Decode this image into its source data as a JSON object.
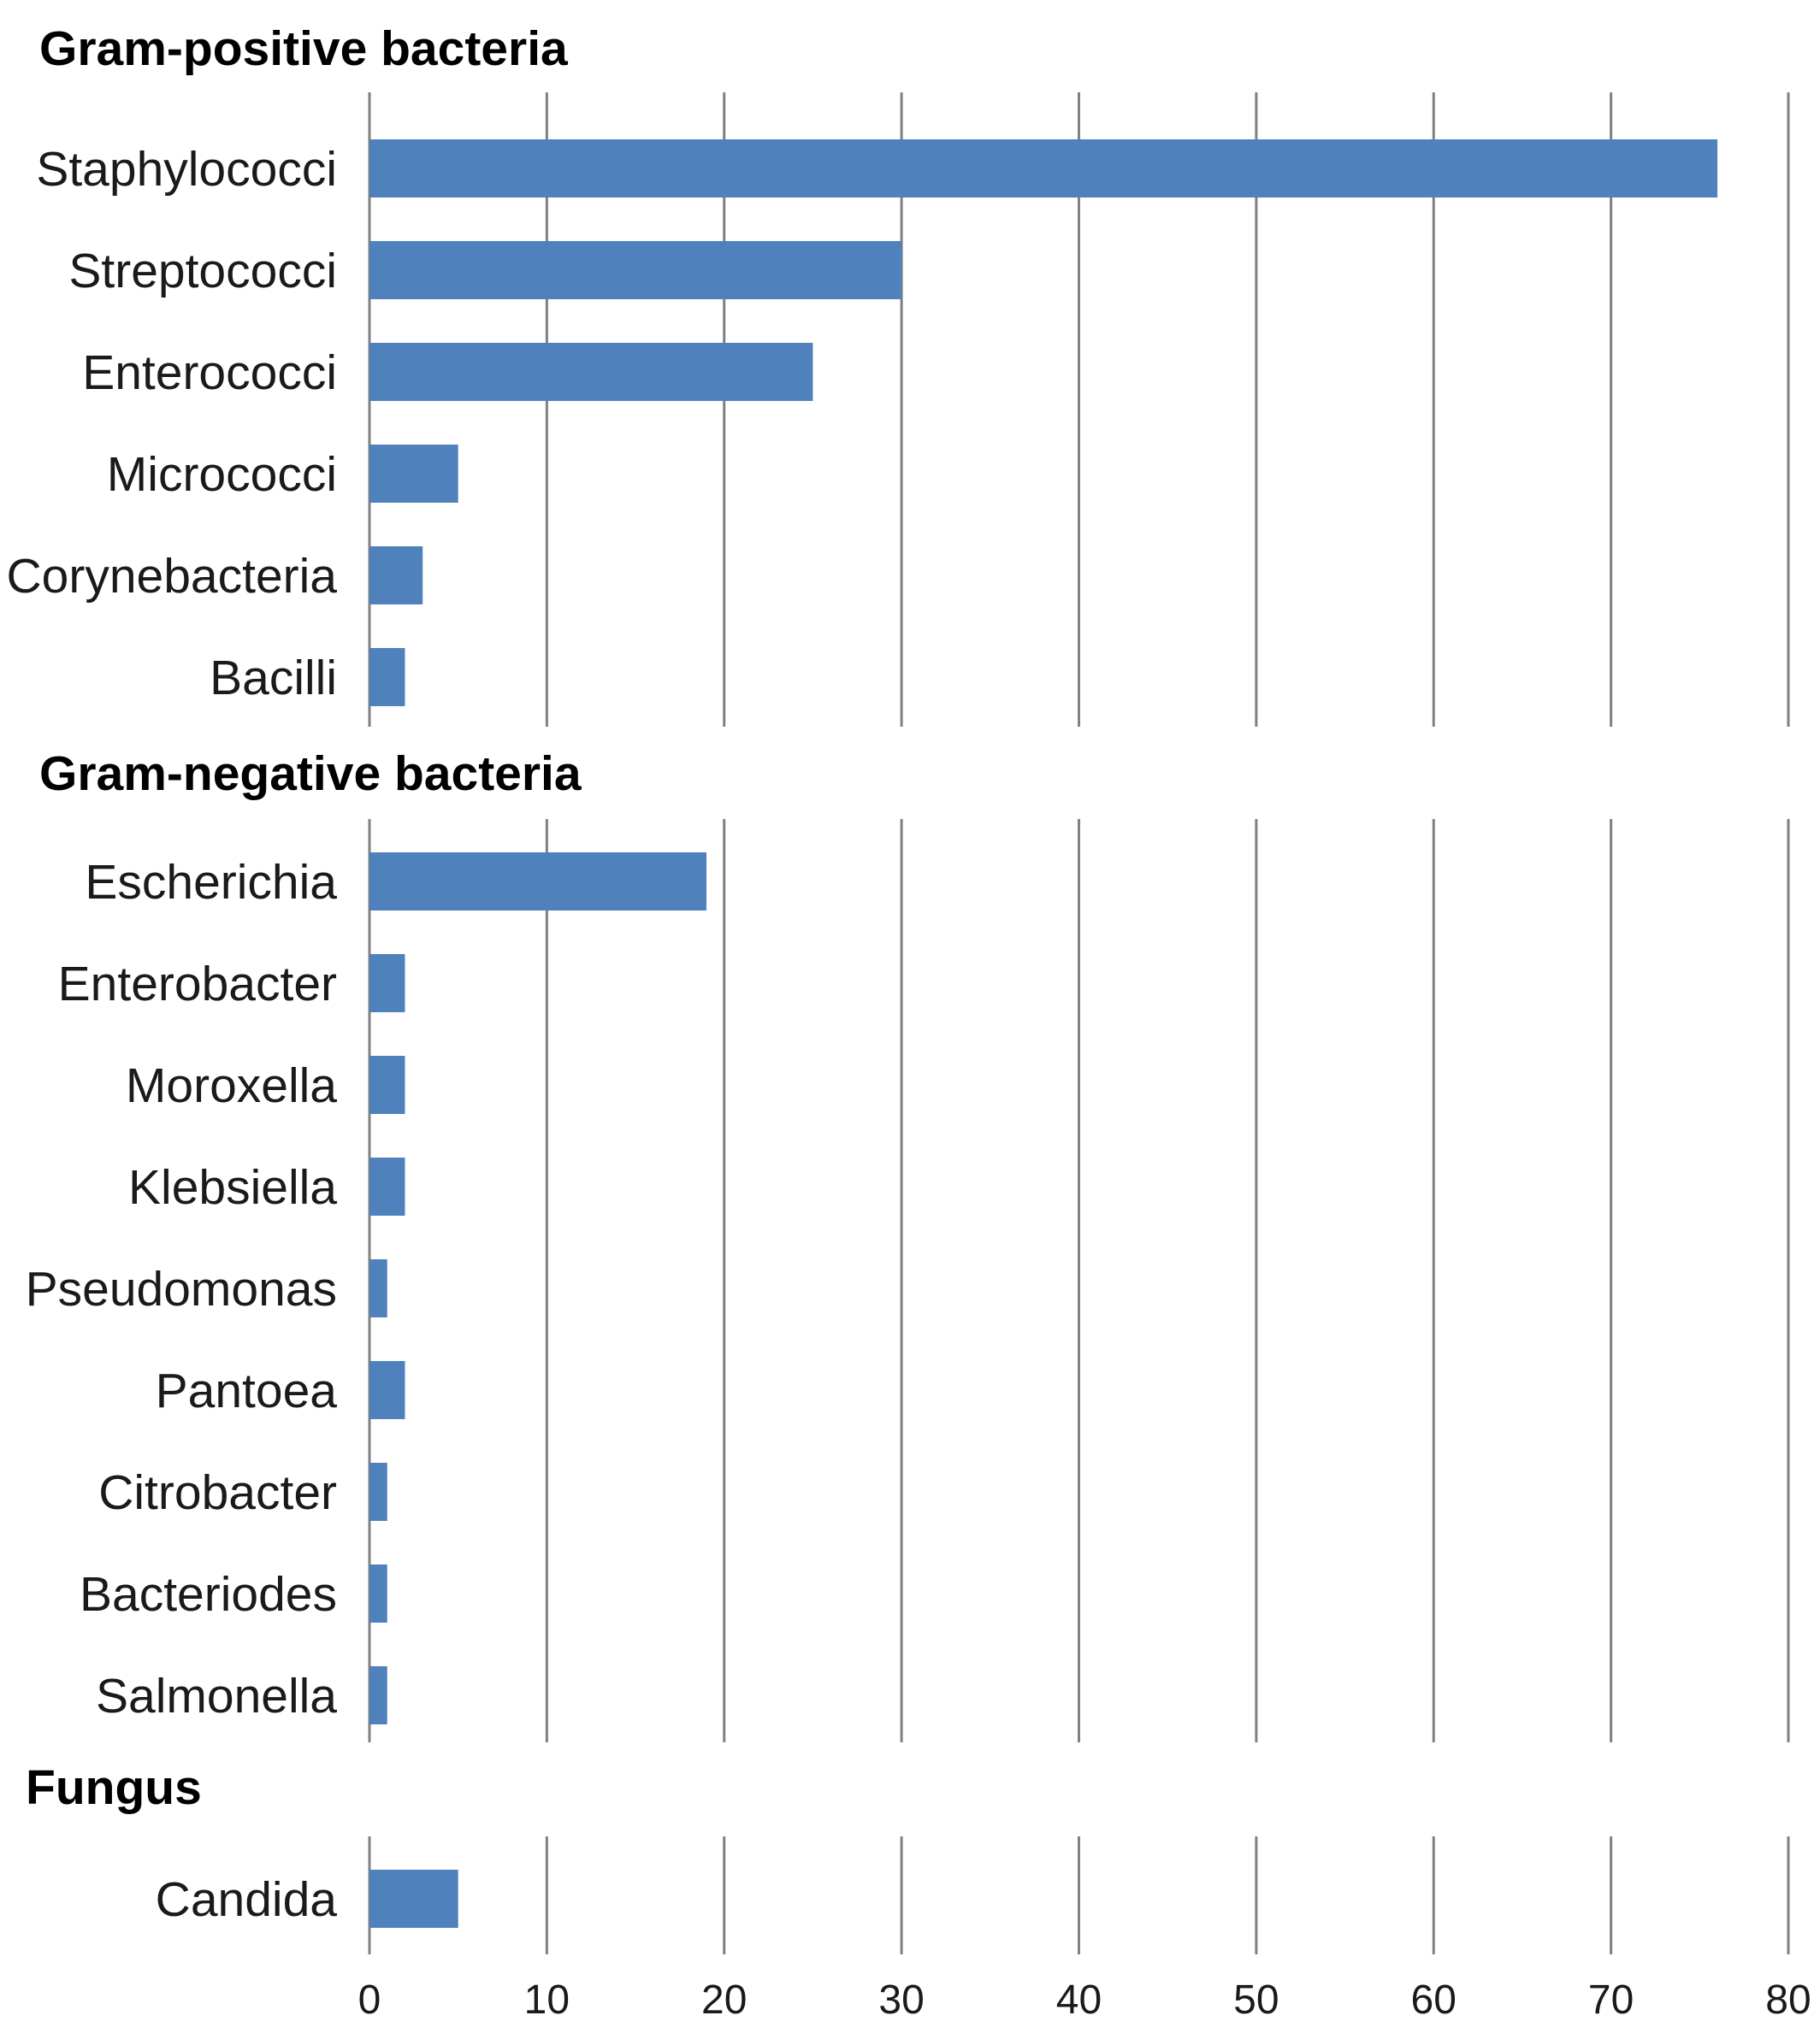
{
  "chart_data": {
    "type": "bar",
    "orientation": "horizontal",
    "xlim": [
      0,
      80
    ],
    "x_ticks": [
      "0",
      "10",
      "20",
      "30",
      "40",
      "50",
      "60",
      "70",
      "80"
    ],
    "grid": true,
    "colors": {
      "bar": "#4F81BD",
      "grid": "#808080"
    },
    "groups": [
      {
        "title": "Gram-positive bacteria",
        "categories": [
          "Staphylococci",
          "Streptococci",
          "Enterococci",
          "Micrococci",
          "Corynebacteria",
          "Bacilli"
        ],
        "values": [
          76,
          30,
          25,
          5,
          3,
          2
        ]
      },
      {
        "title": "Gram-negative bacteria",
        "categories": [
          "Escherichia",
          "Enterobacter",
          "Moroxella",
          "Klebsiella",
          "Pseudomonas",
          "Pantoea",
          "Citrobacter",
          "Bacteriodes",
          "Salmonella"
        ],
        "values": [
          19,
          2,
          2,
          2,
          1,
          2,
          1,
          1,
          1
        ]
      },
      {
        "title": "Fungus",
        "categories": [
          "Candida"
        ],
        "values": [
          5
        ]
      }
    ]
  }
}
